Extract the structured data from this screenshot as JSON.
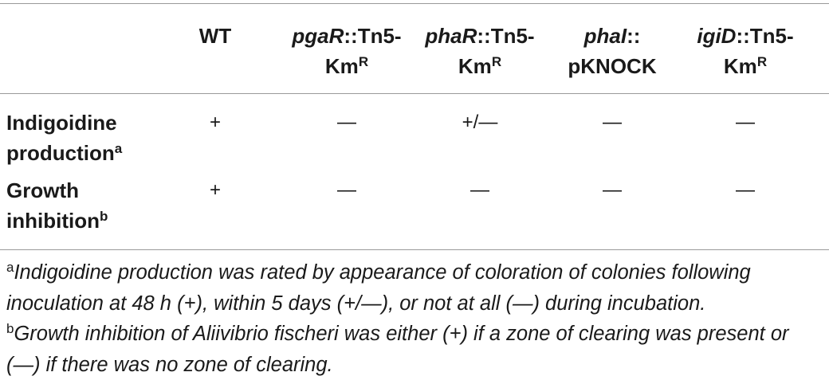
{
  "table": {
    "columns": [
      {
        "text": "WT"
      },
      {
        "italic": "pgaR",
        "text": "::Tn5-Km",
        "sup": "R"
      },
      {
        "italic": "phaR",
        "text": "::Tn5-Km",
        "sup": "R"
      },
      {
        "italic": "phaI",
        "text": ":: pKNOCK"
      },
      {
        "italic": "igiD",
        "text": "::Tn5-Km",
        "sup": "R"
      }
    ],
    "rows": [
      {
        "label": "Indigoidine production",
        "sup": "a",
        "cells": [
          "+",
          "—",
          "+/—",
          "—",
          "—"
        ]
      },
      {
        "label": "Growth inhibition",
        "sup": "b",
        "cells": [
          "+",
          "—",
          "—",
          "—",
          "—"
        ]
      }
    ]
  },
  "footnotes": [
    {
      "mark": "a",
      "text": "Indigoidine production was rated by appearance of coloration of colonies following inoculation at 48 h (+), within 5 days (+/—), or not at all (—) during incubation."
    },
    {
      "mark": "b",
      "text": "Growth inhibition of Aliivibrio fischeri was either (+) if a zone of clearing was present or (—) if there was no zone of clearing."
    }
  ]
}
